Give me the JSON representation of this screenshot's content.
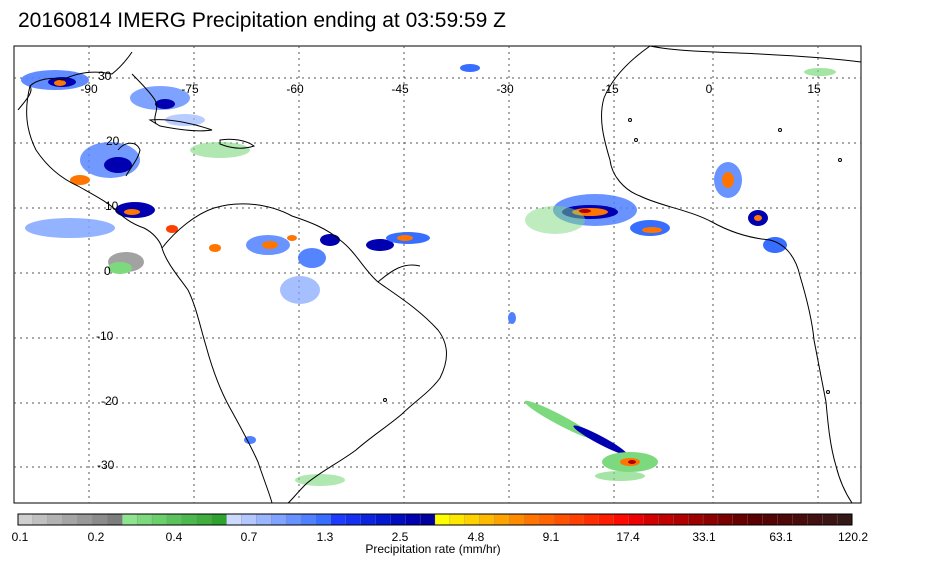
{
  "title": "20160814 IMERG Precipitation ending at 03:59:59 Z",
  "map": {
    "lon_labels": [
      "-90",
      "-75",
      "-60",
      "-45",
      "-30",
      "-15",
      "0",
      "15"
    ],
    "lat_labels": [
      "30",
      "20",
      "10",
      "0",
      "-10",
      "-20",
      "-30"
    ],
    "grid_style": "dotted",
    "background": "#ffffff",
    "coast_color": "#000000"
  },
  "colorbar": {
    "label": "Precipitation rate (mm/hr)",
    "tick_labels": [
      "0.1",
      "0.2",
      "0.4",
      "0.7",
      "1.3",
      "2.5",
      "4.8",
      "9.1",
      "17.4",
      "33.1",
      "63.1",
      "120.2"
    ],
    "colors": [
      "#cfcfcf",
      "#c0c0c0",
      "#b2b2b2",
      "#a5a5a5",
      "#989898",
      "#8b8b8b",
      "#7d7d7d",
      "#8fe48f",
      "#7dd97d",
      "#6bcf6b",
      "#5cc35c",
      "#4db84d",
      "#3fae3f",
      "#2fa22f",
      "#cdd9ff",
      "#b4c8ff",
      "#9ab6ff",
      "#80a4ff",
      "#6792ff",
      "#4f80ff",
      "#376eff",
      "#1e3cff",
      "#1530f0",
      "#0c24e0",
      "#0418d0",
      "#000cc0",
      "#0000b0",
      "#0000a0",
      "#ffff00",
      "#ffe800",
      "#ffd100",
      "#ffba00",
      "#ffa300",
      "#ff8c00",
      "#ff7500",
      "#ff6400",
      "#ff5200",
      "#ff4000",
      "#ff2e00",
      "#ff1c00",
      "#ff0a00",
      "#f00000",
      "#d40000",
      "#c20000",
      "#b00000",
      "#9e0000",
      "#8c0000",
      "#7a0000",
      "#680000",
      "#5a0000",
      "#540404",
      "#4e0808",
      "#480c0c",
      "#421010",
      "#3c1414",
      "#361818"
    ]
  },
  "legend_colors": {
    "light_rain": "#7dd97d",
    "moderate_rain": "#376eff",
    "heavy_rain": "#0000b0",
    "very_heavy": "#ff7500",
    "extreme": "#b00000"
  }
}
